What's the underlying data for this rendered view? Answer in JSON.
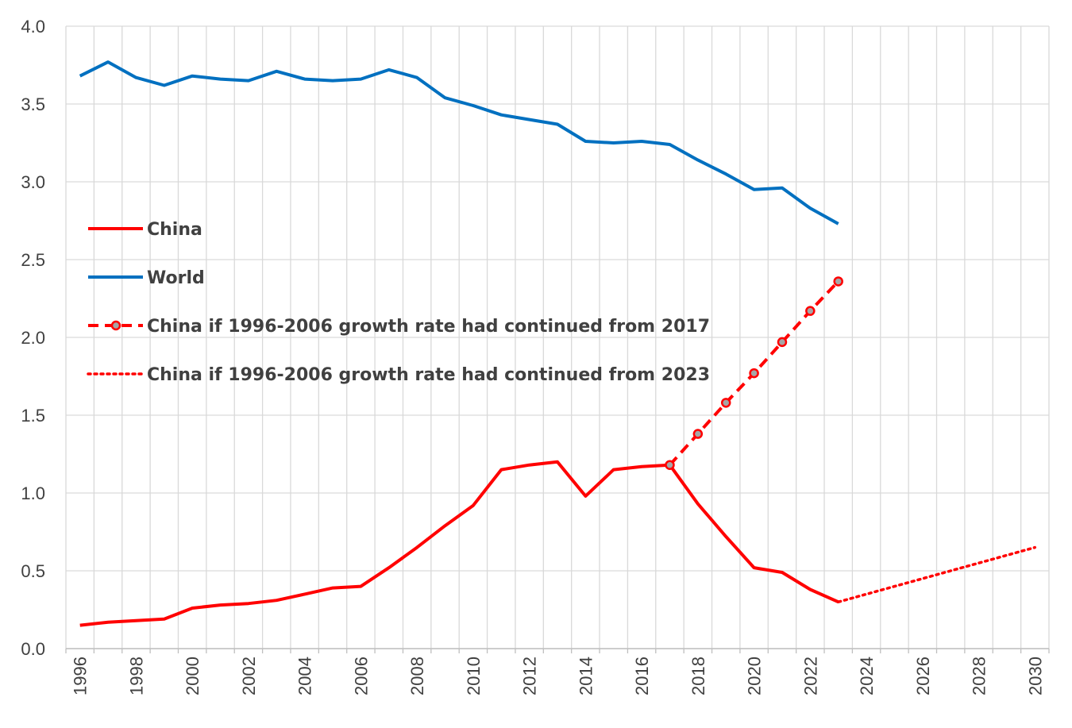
{
  "chart_data": {
    "type": "line",
    "title": "",
    "xlabel": "",
    "ylabel": "",
    "xlim": [
      1996,
      2030
    ],
    "ylim": [
      0,
      4
    ],
    "yticks": [
      0.0,
      0.5,
      1.0,
      1.5,
      2.0,
      2.5,
      3.0,
      3.5,
      4.0
    ],
    "ytick_labels": [
      "0.0",
      "0.5",
      "1.0",
      "1.5",
      "2.0",
      "2.5",
      "3.0",
      "3.5",
      "4.0"
    ],
    "xtick_labels": [
      "1996",
      "1998",
      "2000",
      "2002",
      "2004",
      "2006",
      "2008",
      "2010",
      "2012",
      "2014",
      "2016",
      "2018",
      "2020",
      "2022",
      "2024",
      "2026",
      "2028",
      "2030"
    ],
    "grid": true,
    "legend_position": "left-middle",
    "series": [
      {
        "name": "China",
        "color": "#ff0000",
        "style": "solid",
        "x": [
          1996,
          1997,
          1998,
          1999,
          2000,
          2001,
          2002,
          2003,
          2004,
          2005,
          2006,
          2007,
          2008,
          2009,
          2010,
          2011,
          2012,
          2013,
          2014,
          2015,
          2016,
          2017,
          2018,
          2019,
          2020,
          2021,
          2022,
          2023
        ],
        "values": [
          0.15,
          0.17,
          0.18,
          0.19,
          0.26,
          0.28,
          0.29,
          0.31,
          0.35,
          0.39,
          0.4,
          0.52,
          0.65,
          0.79,
          0.92,
          1.15,
          1.18,
          1.2,
          0.98,
          1.15,
          1.17,
          1.18,
          0.93,
          0.72,
          0.52,
          0.49,
          0.38,
          0.3
        ]
      },
      {
        "name": "World",
        "color": "#0070c0",
        "style": "solid",
        "x": [
          1996,
          1997,
          1998,
          1999,
          2000,
          2001,
          2002,
          2003,
          2004,
          2005,
          2006,
          2007,
          2008,
          2009,
          2010,
          2011,
          2012,
          2013,
          2014,
          2015,
          2016,
          2017,
          2018,
          2019,
          2020,
          2021,
          2022,
          2023
        ],
        "values": [
          3.68,
          3.77,
          3.67,
          3.62,
          3.68,
          3.66,
          3.65,
          3.71,
          3.66,
          3.65,
          3.66,
          3.72,
          3.67,
          3.54,
          3.49,
          3.43,
          3.4,
          3.37,
          3.26,
          3.25,
          3.26,
          3.24,
          3.14,
          3.05,
          2.95,
          2.96,
          2.83,
          2.73
        ]
      },
      {
        "name": "China if 1996-2006 growth rate had continued from 2017",
        "color": "#ff0000",
        "style": "dashed-markers",
        "x": [
          2017,
          2018,
          2019,
          2020,
          2021,
          2022,
          2023
        ],
        "values": [
          1.18,
          1.38,
          1.58,
          1.77,
          1.97,
          2.17,
          2.36
        ]
      },
      {
        "name": "China if 1996-2006 growth rate had continued from 2023",
        "color": "#ff0000",
        "style": "dotted",
        "x": [
          2023,
          2024,
          2025,
          2026,
          2027,
          2028,
          2029,
          2030
        ],
        "values": [
          0.3,
          0.35,
          0.4,
          0.45,
          0.5,
          0.55,
          0.6,
          0.65
        ]
      }
    ]
  },
  "colors": {
    "grid": "#d9d9d9",
    "marker_fill": "#a6a6a6",
    "text": "#404040"
  }
}
